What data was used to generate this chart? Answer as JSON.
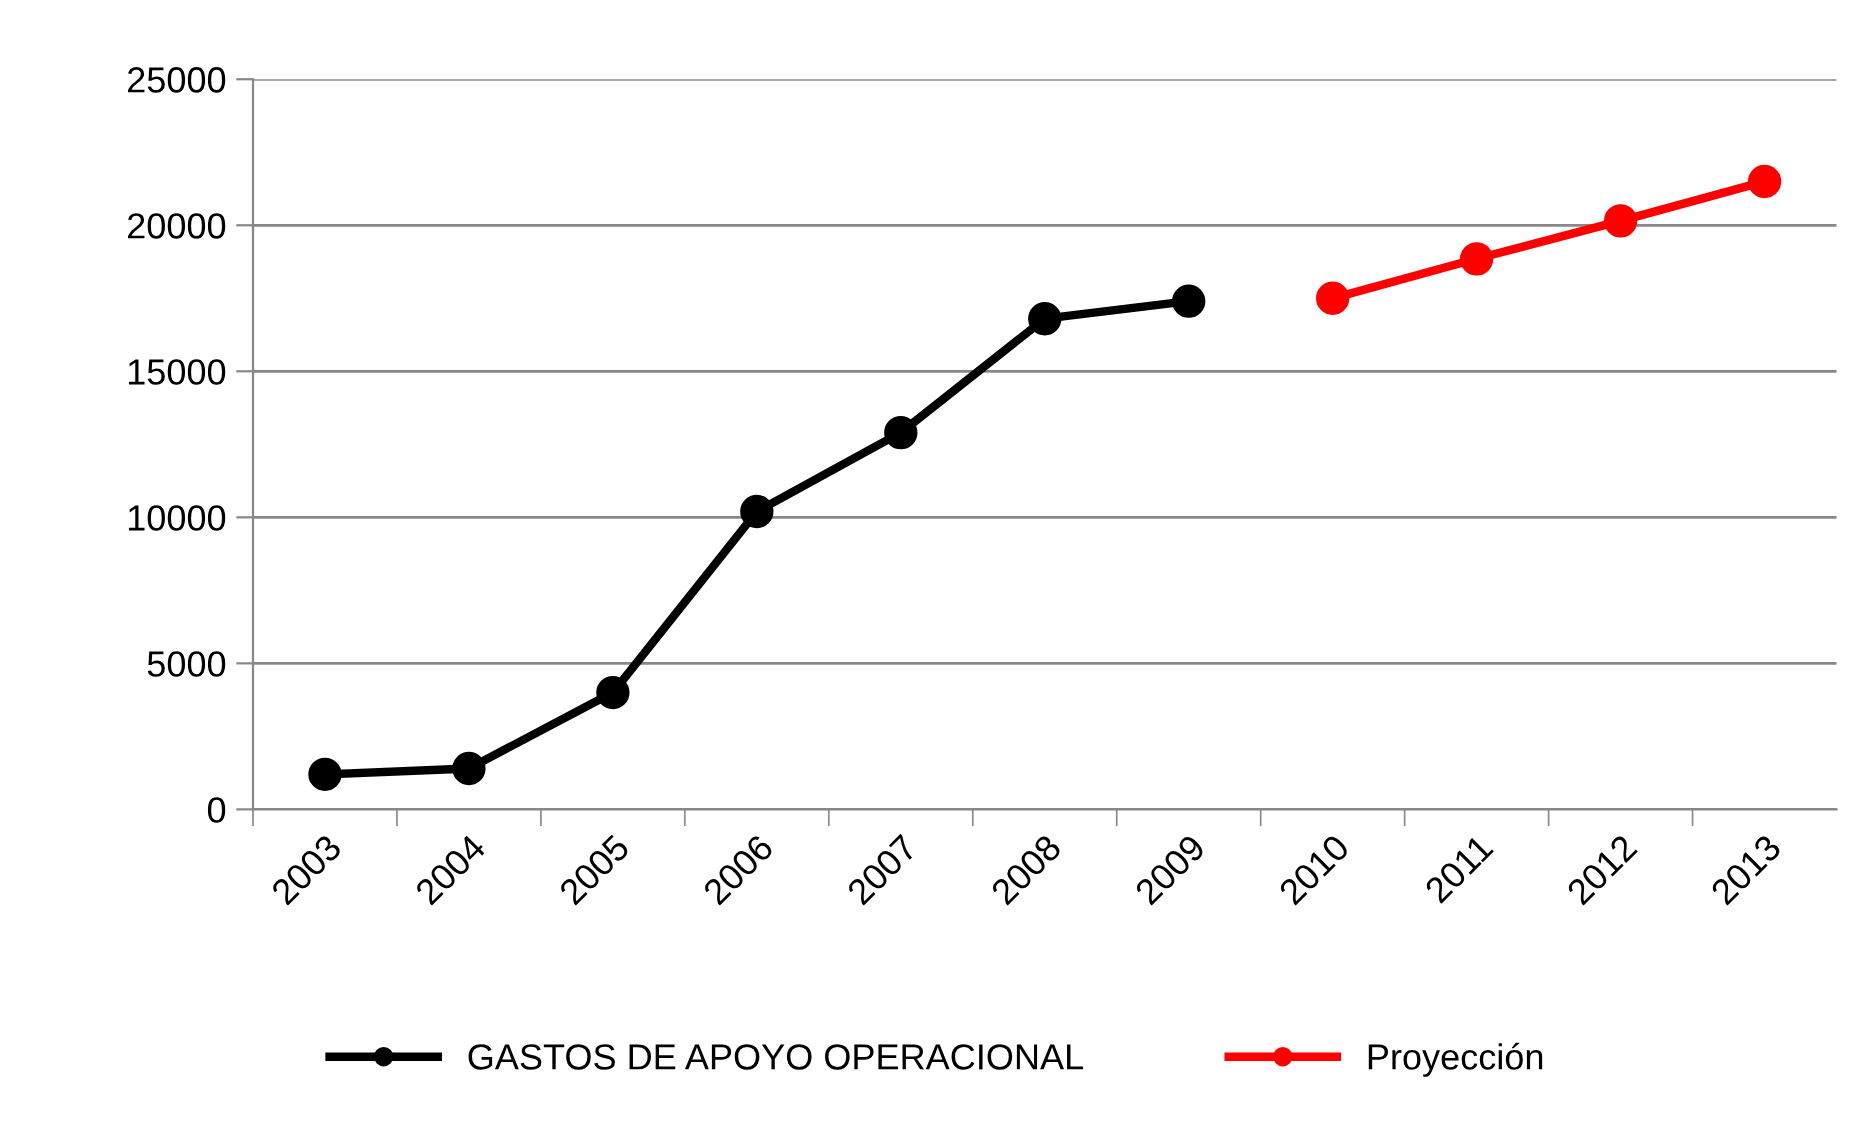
{
  "chart_data": {
    "type": "line",
    "categories": [
      "2003",
      "2004",
      "2005",
      "2006",
      "2007",
      "2008",
      "2009",
      "2010",
      "2011",
      "2012",
      "2013"
    ],
    "series": [
      {
        "name": "GASTOS DE APOYO OPERACIONAL",
        "color": "#000000",
        "values": [
          1200,
          1400,
          4000,
          10200,
          12900,
          16800,
          17400,
          null,
          null,
          null,
          null
        ]
      },
      {
        "name": "Proyección",
        "color": "#ff0000",
        "values": [
          null,
          null,
          null,
          null,
          null,
          null,
          null,
          17500,
          18850,
          20150,
          21500
        ]
      }
    ],
    "ylim": [
      0,
      25000
    ],
    "yticks": [
      0,
      5000,
      10000,
      15000,
      20000,
      25000
    ],
    "grid": "y",
    "legend": "bottom",
    "marker": "circle",
    "line_style": "solid"
  }
}
